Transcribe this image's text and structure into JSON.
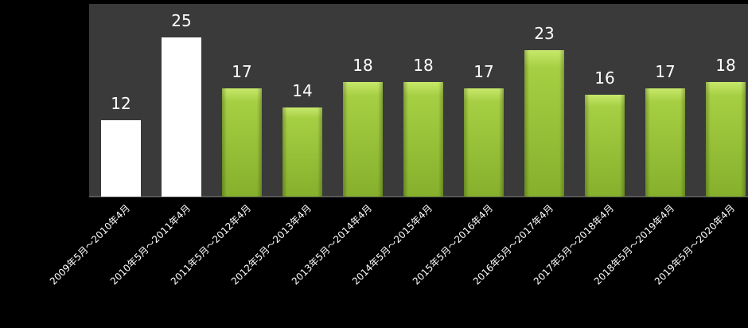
{
  "chart_data": {
    "type": "bar",
    "categories": [
      "2009年5月～2010年4月",
      "2010年5月～2011年4月",
      "2011年5月～2012年4月",
      "2012年5月～2013年4月",
      "2013年5月～2014年4月",
      "2014年5月～2015年4月",
      "2015年5月～2016年4月",
      "2016年5月～2017年4月",
      "2017年5月～2018年4月",
      "2018年5月～2019年4月",
      "2019年5月～2020年4月"
    ],
    "values": [
      12,
      25,
      17,
      14,
      18,
      18,
      17,
      23,
      16,
      17,
      18
    ],
    "data_labels": [
      "12",
      "25",
      "17",
      "14",
      "18",
      "18",
      "17",
      "23",
      "16",
      "17",
      "18"
    ],
    "highlighted": [
      0,
      1
    ],
    "ylim": [
      0,
      30
    ],
    "grid": false,
    "legend": "none",
    "colors": {
      "background": "#000000",
      "plot_area": "#3a3a3a",
      "bar_green_light": "#c7e86b",
      "bar_green_mid": "#9cc63a",
      "bar_green_dark": "#78a125",
      "bar_highlight": "#ffffff",
      "label_text": "#ffffff"
    }
  }
}
